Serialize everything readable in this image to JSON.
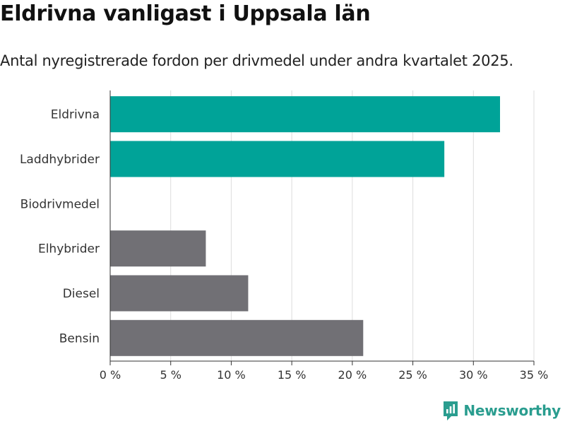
{
  "header": {
    "title": "Eldrivna vanligast i Uppsala län",
    "subtitle": "Antal nyregistrerade fordon per drivmedel under andra kvartalet 2025."
  },
  "brand": {
    "name": "Newsworthy",
    "icon": "newsworthy-logo-icon"
  },
  "colors": {
    "highlight": "#00a398",
    "default": "#717075",
    "grid": "#dddddd",
    "axis": "#333333"
  },
  "chart_data": {
    "type": "bar",
    "orientation": "horizontal",
    "title": "Eldrivna vanligast i Uppsala län",
    "subtitle": "Antal nyregistrerade fordon per drivmedel under andra kvartalet 2025.",
    "categories": [
      "Eldrivna",
      "Laddhybrider",
      "Biodrivmedel",
      "Elhybrider",
      "Diesel",
      "Bensin"
    ],
    "values": [
      32.2,
      27.6,
      0,
      7.9,
      11.4,
      20.9
    ],
    "highlighted": [
      true,
      true,
      false,
      false,
      false,
      false
    ],
    "xlim": [
      0,
      35
    ],
    "xticks": [
      0,
      5,
      10,
      15,
      20,
      25,
      30,
      35
    ],
    "xtick_labels": [
      "0 %",
      "5 %",
      "10 %",
      "15 %",
      "20 %",
      "25 %",
      "30 %",
      "35 %"
    ],
    "xlabel": "",
    "ylabel": "",
    "grid": true,
    "legend": "none"
  }
}
